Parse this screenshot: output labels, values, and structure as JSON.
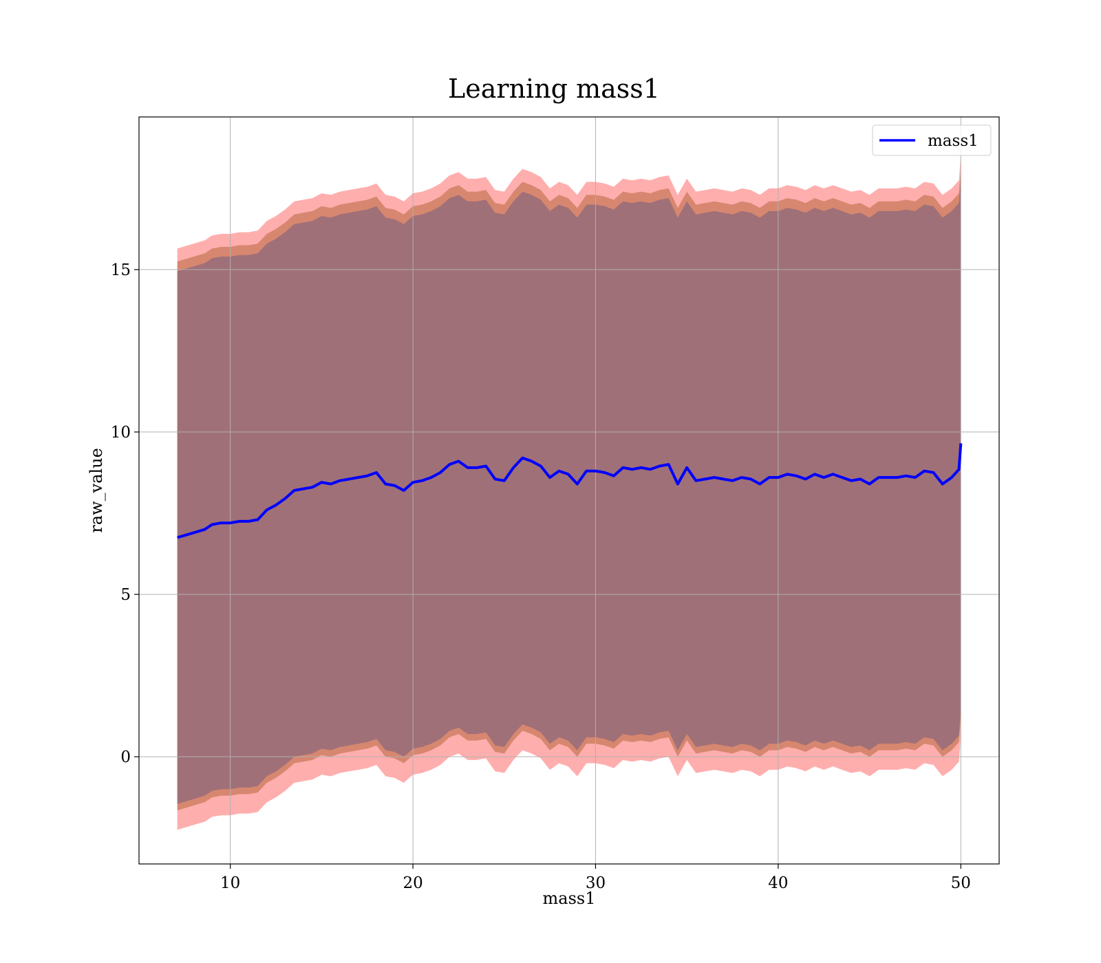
{
  "chart_data": {
    "type": "line",
    "title": "Learning mass1",
    "xlabel": "mass1",
    "ylabel": "raw_value",
    "xlim": [
      5,
      52.1
    ],
    "ylim": [
      -3.3,
      19.7
    ],
    "x_ticks": [
      10,
      20,
      30,
      40,
      50
    ],
    "y_ticks": [
      0,
      5,
      10,
      15
    ],
    "grid": true,
    "legend_position": "top-right",
    "series": [
      {
        "name": "mass1",
        "color": "#0000ff",
        "x": [
          7.1,
          8,
          8.6,
          9,
          9.5,
          10,
          10.5,
          11,
          11.5,
          12,
          12.5,
          13,
          13.5,
          14,
          14.5,
          15,
          15.5,
          16,
          16.5,
          17,
          17.5,
          18,
          18.5,
          19,
          19.5,
          20,
          20.5,
          21,
          21.5,
          22,
          22.5,
          23,
          23.5,
          24,
          24.5,
          25,
          25.5,
          26,
          26.5,
          27,
          27.5,
          28,
          28.5,
          29,
          29.5,
          30,
          30.5,
          31,
          31.5,
          32,
          32.5,
          33,
          33.5,
          34,
          34.5,
          35,
          35.5,
          36,
          36.5,
          37,
          37.5,
          38,
          38.5,
          39,
          39.5,
          40,
          40.5,
          41,
          41.5,
          42,
          42.5,
          43,
          43.5,
          44,
          44.5,
          45,
          45.5,
          46,
          46.5,
          47,
          47.5,
          48,
          48.5,
          49,
          49.5,
          49.9,
          50
        ],
        "y": [
          6.75,
          6.9,
          7.0,
          7.15,
          7.2,
          7.2,
          7.25,
          7.25,
          7.3,
          7.6,
          7.75,
          7.95,
          8.2,
          8.25,
          8.3,
          8.45,
          8.4,
          8.5,
          8.55,
          8.6,
          8.65,
          8.75,
          8.4,
          8.35,
          8.2,
          8.45,
          8.5,
          8.6,
          8.75,
          9.0,
          9.1,
          8.9,
          8.9,
          8.95,
          8.55,
          8.5,
          8.9,
          9.2,
          9.1,
          8.95,
          8.6,
          8.8,
          8.7,
          8.4,
          8.8,
          8.8,
          8.75,
          8.65,
          8.9,
          8.85,
          8.9,
          8.85,
          8.95,
          9.0,
          8.4,
          8.9,
          8.5,
          8.55,
          8.6,
          8.55,
          8.5,
          8.6,
          8.55,
          8.4,
          8.6,
          8.6,
          8.7,
          8.65,
          8.55,
          8.7,
          8.6,
          8.7,
          8.6,
          8.5,
          8.55,
          8.4,
          8.6,
          8.6,
          8.6,
          8.65,
          8.6,
          8.8,
          8.75,
          8.4,
          8.6,
          8.85,
          9.65
        ]
      }
    ],
    "bands": [
      {
        "color": "#ff6b6b",
        "opacity": 0.55,
        "lower_offset": -9.0,
        "upper_offset": 8.9
      },
      {
        "color": "#c97a5a",
        "opacity": 0.75,
        "lower_offset": -8.4,
        "upper_offset": 8.5
      },
      {
        "color": "#a07078",
        "opacity": 1.0,
        "lower_offset": -8.2,
        "upper_offset": 8.2
      }
    ]
  }
}
